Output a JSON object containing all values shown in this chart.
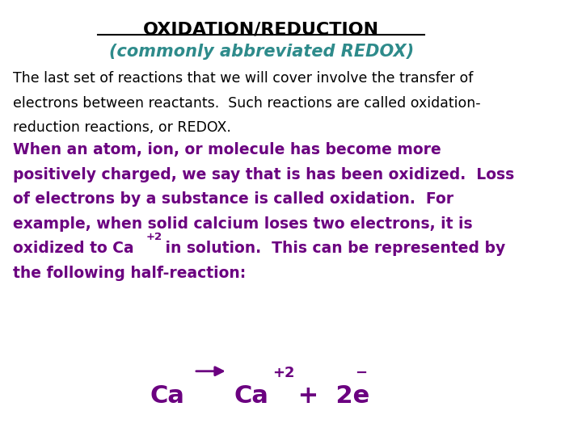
{
  "bg_color": "#ffffff",
  "title_text": "OXIDATION/REDUCTION",
  "title_color": "#000000",
  "subtitle_text": "(commonly abbreviated REDOX)",
  "subtitle_color": "#2e8b8b",
  "body1_line1": "The last set of reactions that we will cover involve the transfer of",
  "body1_line2": "electrons between reactants.  Such reactions are called oxidation-",
  "body1_line3": "reduction reactions, or REDOX.",
  "body1_color": "#000000",
  "body2_line1": "When an atom, ion, or molecule has become more",
  "body2_line2": "positively charged, we say that is has been oxidized.  Loss",
  "body2_line3": "of electrons by a substance is called oxidation.  For",
  "body2_line4": "example, when solid calcium loses two electrons, it is",
  "body2_line5a": "oxidized to Ca",
  "body2_line5b": "+2",
  "body2_line5c": " in solution.  This can be represented by",
  "body2_line6": "the following half-reaction:",
  "body2_color": "#6b0080",
  "equation_color": "#6b0080",
  "figsize": [
    7.2,
    5.4
  ],
  "dpi": 100
}
